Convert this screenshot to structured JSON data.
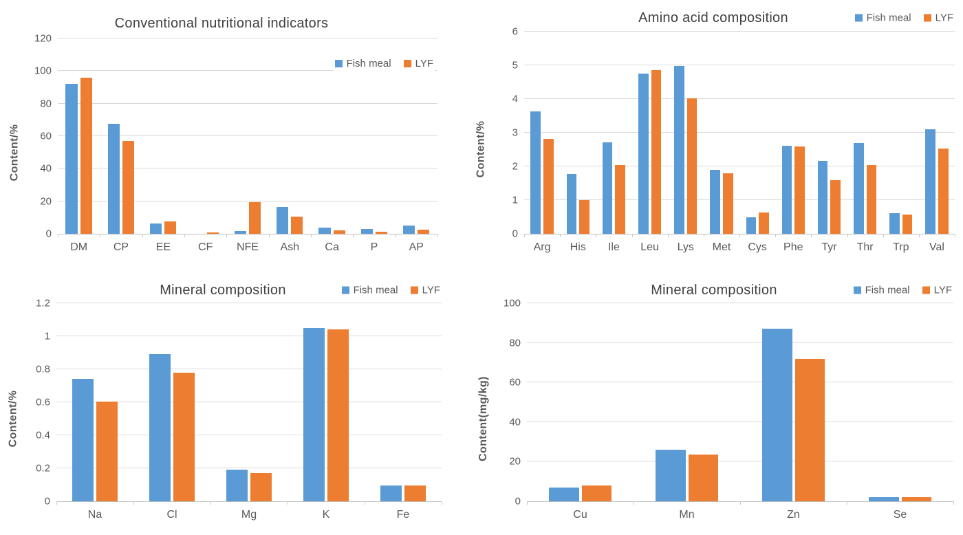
{
  "page": {
    "background": "#FFFFFF"
  },
  "colors": {
    "fish_meal": "#5B9BD5",
    "lyf": "#ED7D31",
    "gridline": "#D9D9D9",
    "axis_line": "#BFBFBF",
    "tick_text": "#595959",
    "title_text": "#404040"
  },
  "legend_items": [
    {
      "label": "Fish meal",
      "color": "#5B9BD5"
    },
    {
      "label": "LYF",
      "color": "#ED7D31"
    }
  ],
  "chart_data": [
    {
      "id": "conventional-nutritional-indicators",
      "type": "bar",
      "title": "Conventional nutritional indicators",
      "ylabel": "Content/%",
      "ylim": [
        0,
        120
      ],
      "ytick_labels": [
        "0",
        "20",
        "40",
        "60",
        "80",
        "100",
        "120"
      ],
      "grid": true,
      "legend_position": "inside-top-right",
      "categories": [
        "DM",
        "CP",
        "EE",
        "CF",
        "NFE",
        "Ash",
        "Ca",
        "P",
        "AP"
      ],
      "series": [
        {
          "name": "Fish meal",
          "color": "#5B9BD5",
          "values": [
            92,
            67.5,
            6.5,
            0,
            1.5,
            16.5,
            4,
            3,
            5
          ]
        },
        {
          "name": "LYF",
          "color": "#ED7D31",
          "values": [
            96,
            57,
            7.5,
            1,
            19.5,
            10.5,
            2,
            1.2,
            2.5
          ]
        }
      ]
    },
    {
      "id": "amino-acid-composition",
      "type": "bar",
      "title": "Amino acid composition",
      "ylabel": "Content/%",
      "ylim": [
        0,
        6
      ],
      "ytick_labels": [
        "0",
        "1",
        "2",
        "3",
        "4",
        "5",
        "6"
      ],
      "grid": true,
      "legend_position": "header",
      "categories": [
        "Arg",
        "His",
        "Ile",
        "Leu",
        "Lys",
        "Met",
        "Cys",
        "Phe",
        "Tyr",
        "Thr",
        "Trp",
        "Val"
      ],
      "series": [
        {
          "name": "Fish meal",
          "color": "#5B9BD5",
          "values": [
            3.64,
            1.78,
            2.72,
            4.75,
            4.98,
            1.9,
            0.5,
            2.62,
            2.16,
            2.7,
            0.62,
            3.1
          ]
        },
        {
          "name": "LYF",
          "color": "#ED7D31",
          "values": [
            2.81,
            1.0,
            2.04,
            4.86,
            4.02,
            1.79,
            0.63,
            2.6,
            1.59,
            2.04,
            0.58,
            2.54
          ]
        }
      ]
    },
    {
      "id": "mineral-composition-percent",
      "type": "bar",
      "title": "Mineral composition",
      "ylabel": "Content/%",
      "ylim": [
        0,
        1.2
      ],
      "ytick_labels": [
        "0",
        "0.2",
        "0.4",
        "0.6",
        "0.8",
        "1",
        "1.2"
      ],
      "grid": true,
      "legend_position": "header",
      "categories": [
        "Na",
        "Cl",
        "Mg",
        "K",
        "Fe"
      ],
      "series": [
        {
          "name": "Fish meal",
          "color": "#5B9BD5",
          "values": [
            0.74,
            0.89,
            0.19,
            1.05,
            0.095
          ]
        },
        {
          "name": "LYF",
          "color": "#ED7D31",
          "values": [
            0.605,
            0.78,
            0.17,
            1.04,
            0.095
          ]
        }
      ]
    },
    {
      "id": "mineral-composition-mg-kg",
      "type": "bar",
      "title": "Mineral composition",
      "ylabel": "Content(mg/kg)",
      "ylim": [
        0,
        100
      ],
      "ytick_labels": [
        "0",
        "20",
        "40",
        "60",
        "80",
        "100"
      ],
      "grid": true,
      "legend_position": "header",
      "categories": [
        "Cu",
        "Mn",
        "Zn",
        "Se"
      ],
      "series": [
        {
          "name": "Fish meal",
          "color": "#5B9BD5",
          "values": [
            7,
            26,
            87,
            2
          ]
        },
        {
          "name": "LYF",
          "color": "#ED7D31",
          "values": [
            8,
            23.5,
            72,
            2
          ]
        }
      ]
    }
  ]
}
